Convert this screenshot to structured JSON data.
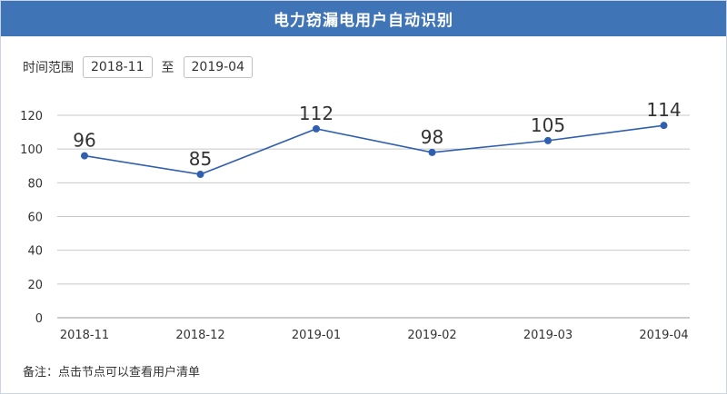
{
  "header": {
    "title": "电力窃漏电用户自动识别"
  },
  "range": {
    "label": "时间范围",
    "start": "2018-11",
    "separator": "至",
    "end": "2019-04"
  },
  "note": "备注：点击节点可以查看用户清单",
  "colors": {
    "header_bg": "#3f74b7",
    "line": "#2f5fae",
    "point": "#2f5fae",
    "grid": "#c8c8c8"
  },
  "chart_data": {
    "type": "line",
    "categories": [
      "2018-11",
      "2018-12",
      "2019-01",
      "2019-02",
      "2019-03",
      "2019-04"
    ],
    "values": [
      96,
      85,
      112,
      98,
      105,
      114
    ],
    "yticks": [
      0,
      20,
      40,
      60,
      80,
      100,
      120
    ],
    "ylim": [
      0,
      120
    ],
    "grid": true,
    "legend": "none"
  }
}
